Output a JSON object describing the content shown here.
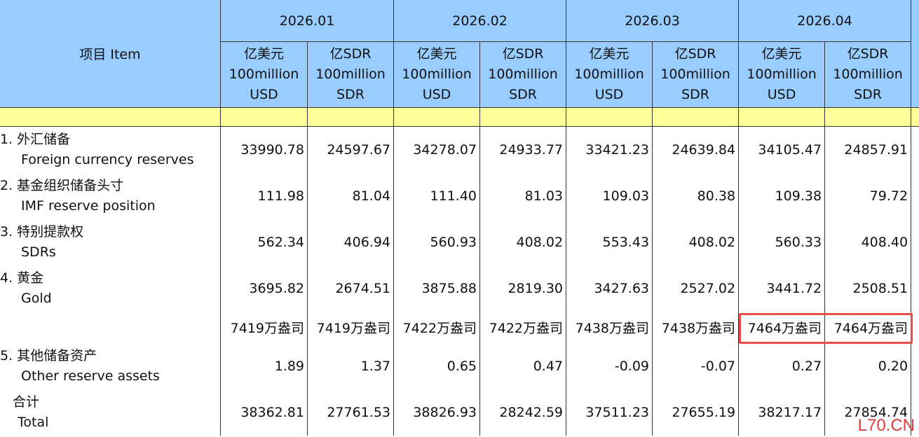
{
  "header": {
    "item_label": "项目 Item",
    "months": [
      "2026.01",
      "2026.02",
      "2026.03",
      "2026.04"
    ],
    "units": {
      "usd": [
        "亿美元",
        "100million",
        "USD"
      ],
      "sdr": [
        "亿SDR",
        "100million",
        "SDR"
      ]
    }
  },
  "rows": [
    {
      "cn": "1. 外汇储备",
      "en": "Foreign currency reserves",
      "values": [
        "33990.78",
        "24597.67",
        "34278.07",
        "24933.77",
        "33421.23",
        "24639.84",
        "34105.47",
        "24857.91"
      ]
    },
    {
      "cn": "2. 基金组织储备头寸",
      "en": "IMF reserve position",
      "values": [
        "111.98",
        "81.04",
        "111.40",
        "81.03",
        "109.03",
        "80.38",
        "109.38",
        "79.72"
      ]
    },
    {
      "cn": "3. 特别提款权",
      "en": "SDRs",
      "values": [
        "562.34",
        "406.94",
        "560.93",
        "408.02",
        "553.43",
        "408.02",
        "560.33",
        "408.40"
      ]
    },
    {
      "cn": "4. 黄金",
      "en": "Gold",
      "values": [
        "3695.82",
        "2674.51",
        "3875.88",
        "2819.30",
        "3427.63",
        "2527.02",
        "3441.72",
        "2508.51"
      ]
    },
    {
      "cn": "",
      "en": "",
      "values": [
        "7419万盎司",
        "7419万盎司",
        "7422万盎司",
        "7422万盎司",
        "7438万盎司",
        "7438万盎司",
        "7464万盎司",
        "7464万盎司"
      ]
    },
    {
      "cn": "5. 其他储备资产",
      "en": "Other reserve assets",
      "values": [
        "1.89",
        "1.37",
        "0.65",
        "0.47",
        "-0.09",
        "-0.07",
        "0.27",
        "0.20"
      ]
    },
    {
      "cn": "合计",
      "en": "Total",
      "values": [
        "38362.81",
        "27761.53",
        "38826.93",
        "28242.59",
        "37511.23",
        "27655.19",
        "38217.17",
        "27854.74"
      ]
    }
  ],
  "watermark": "L70.CN",
  "colors": {
    "header_bg": "#99ccff",
    "band_bg": "#ffff99",
    "highlight": "#e74c4c",
    "watermark": "#e33b3b"
  }
}
